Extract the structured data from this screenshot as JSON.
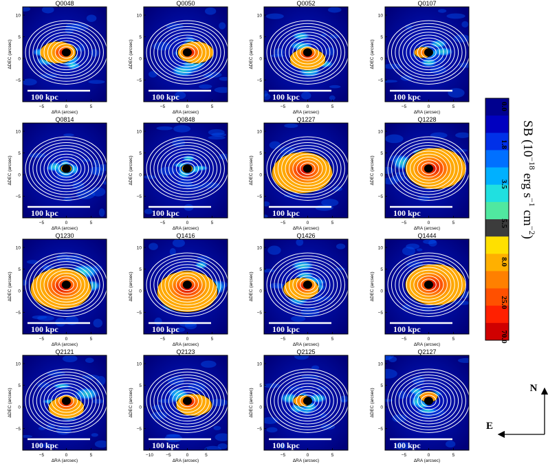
{
  "figure": {
    "panels": [
      {
        "name": "Q0048",
        "scale_label": "100 kpc",
        "emission": "medium",
        "blob_dir": "E"
      },
      {
        "name": "Q0050",
        "scale_label": "100 kpc",
        "emission": "medium",
        "blob_dir": "W"
      },
      {
        "name": "Q0052",
        "scale_label": "100 kpc",
        "emission": "medium",
        "blob_dir": "S"
      },
      {
        "name": "Q0107",
        "scale_label": "100 kpc",
        "emission": "weak",
        "blob_dir": "E"
      },
      {
        "name": "Q0814",
        "scale_label": "100 kpc",
        "emission": "faint",
        "blob_dir": "W"
      },
      {
        "name": "Q0848",
        "scale_label": "100 kpc",
        "emission": "faint",
        "blob_dir": "N"
      },
      {
        "name": "Q1227",
        "scale_label": "100 kpc",
        "emission": "strong",
        "blob_dir": "SE"
      },
      {
        "name": "Q1228",
        "scale_label": "100 kpc",
        "emission": "strong",
        "blob_dir": "W"
      },
      {
        "name": "Q1230",
        "scale_label": "100 kpc",
        "emission": "strong",
        "blob_dir": "SE"
      },
      {
        "name": "Q1416",
        "scale_label": "100 kpc",
        "emission": "strong",
        "blob_dir": "S"
      },
      {
        "name": "Q1426",
        "scale_label": "100 kpc",
        "emission": "medium",
        "blob_dir": "SE"
      },
      {
        "name": "Q1444",
        "scale_label": "100 kpc",
        "emission": "strong",
        "blob_dir": "W"
      },
      {
        "name": "Q2121",
        "scale_label": "100 kpc",
        "emission": "medium",
        "blob_dir": "S"
      },
      {
        "name": "Q2123",
        "scale_label": "100 kpc",
        "emission": "medium",
        "blob_dir": "SW"
      },
      {
        "name": "Q2125",
        "scale_label": "100 kpc",
        "emission": "weak",
        "blob_dir": "E"
      },
      {
        "name": "Q2127",
        "scale_label": "100 kpc",
        "emission": "weak",
        "blob_dir": "N"
      }
    ],
    "axes": {
      "xlabel": "ΔRA (arcsec)",
      "ylabel": "ΔDEC (arcsec)",
      "xticks_default": [
        "−5",
        "0",
        "5"
      ],
      "xticks_wide": [
        "−10",
        "−5",
        "0",
        "5"
      ],
      "yticks": [
        "10",
        "5",
        "0",
        "−5"
      ]
    },
    "colorbar": {
      "ticks": [
        "0.0",
        "1.8",
        "3.5",
        "5.5",
        "8.0",
        "25.0",
        "70.0"
      ],
      "label_main": "SB (10",
      "label_exp1": "−18",
      "label_mid": " erg s",
      "label_exp2": "−1",
      "label_unit": " cm",
      "label_exp3": "−2",
      "label_close": ")",
      "colors": [
        "#00008f",
        "#0000c0",
        "#0030e8",
        "#0070ff",
        "#00b0ff",
        "#20e0e0",
        "#50e8a0",
        "#3c3c3c",
        "#ffe000",
        "#ffb000",
        "#ff8000",
        "#ff5000",
        "#ff2000",
        "#d00000"
      ]
    },
    "compass": {
      "north": "N",
      "east": "E"
    }
  },
  "chart_data": {
    "type": "heatmap",
    "title": "",
    "xlabel": "ΔRA (arcsec)",
    "ylabel": "ΔDEC (arcsec)",
    "panels": [
      "Q0048",
      "Q0050",
      "Q0052",
      "Q0107",
      "Q0814",
      "Q0848",
      "Q1227",
      "Q1228",
      "Q1230",
      "Q1416",
      "Q1426",
      "Q1444",
      "Q2121",
      "Q2123",
      "Q2125",
      "Q2127"
    ],
    "colorbar_label": "SB (10^-18 erg s^-1 cm^-2)",
    "colorbar_ticks": [
      0.0,
      1.8,
      3.5,
      5.5,
      8.0,
      25.0,
      70.0
    ],
    "xlim": [
      -8,
      8
    ],
    "ylim": [
      -8,
      12
    ],
    "scale_bar": "100 kpc"
  }
}
